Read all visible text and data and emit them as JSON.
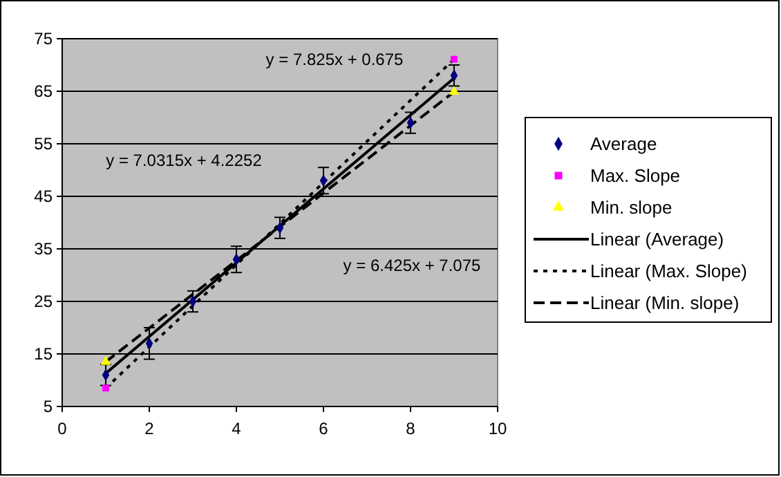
{
  "chart_data": {
    "type": "scatter",
    "xlim": [
      0,
      10
    ],
    "xticks": [
      0,
      2,
      4,
      6,
      8,
      10
    ],
    "ylim": [
      5,
      75
    ],
    "yticks": [
      5,
      15,
      25,
      35,
      45,
      55,
      65,
      75
    ],
    "grid": "y",
    "legend": "right",
    "series": [
      {
        "name": "Average",
        "color": "#000080",
        "marker": "diamond",
        "x": [
          1,
          2,
          3,
          4,
          5,
          6,
          8,
          9
        ],
        "values": [
          11,
          17,
          25,
          33,
          39,
          48,
          59,
          68
        ],
        "errors": [
          2,
          3,
          2,
          2.5,
          2,
          2.5,
          2,
          2
        ]
      },
      {
        "name": "Max. Slope",
        "color": "#ff00ff",
        "marker": "square",
        "x": [
          1,
          9
        ],
        "values": [
          8.5,
          71.1
        ]
      },
      {
        "name": "Min. slope",
        "color": "#ffff00",
        "marker": "triangle",
        "x": [
          1,
          9
        ],
        "values": [
          13.5,
          64.9
        ]
      },
      {
        "name": "Linear (Average)",
        "type": "line",
        "color": "#000000",
        "line_style": "solid",
        "marker": "none",
        "x": [
          1,
          9
        ],
        "values": [
          11.3,
          67.5
        ]
      },
      {
        "name": "Linear (Max. Slope)",
        "type": "line",
        "color": "#000000",
        "line_style": "dotted",
        "marker": "none",
        "x": [
          1,
          9
        ],
        "values": [
          8.5,
          71.1
        ]
      },
      {
        "name": "Linear (Min. slope)",
        "type": "line",
        "color": "#000000",
        "line_style": "dashed",
        "marker": "none",
        "x": [
          1,
          9
        ],
        "values": [
          13.5,
          64.9
        ]
      }
    ],
    "annotations": [
      "y = 7.825x + 0.675",
      "y = 7.0315x + 4.2252",
      "y = 6.425x + 7.075"
    ]
  }
}
